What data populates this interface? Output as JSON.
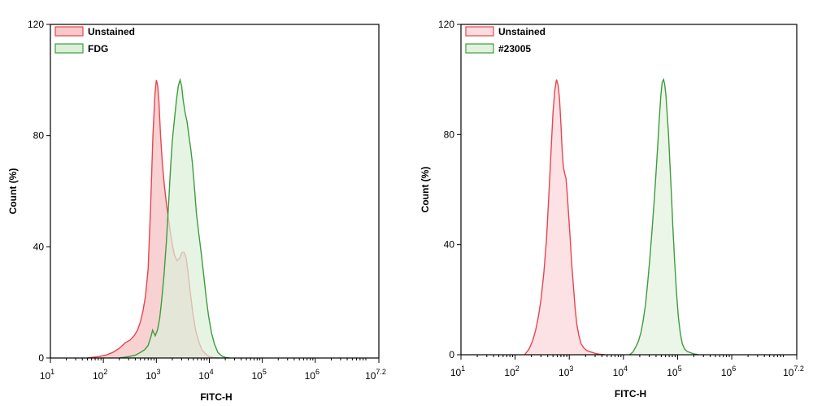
{
  "chart_data": [
    {
      "type": "area",
      "xscale": "log",
      "xlim": [
        10,
        15848931.92
      ],
      "ylim": [
        0,
        120
      ],
      "xlabel": "FITC-H",
      "ylabel": "Count (%)",
      "xticks": [
        {
          "value": 10,
          "base": "10",
          "exp": "1"
        },
        {
          "value": 100,
          "base": "10",
          "exp": "2"
        },
        {
          "value": 1000,
          "base": "10",
          "exp": "3"
        },
        {
          "value": 10000,
          "base": "10",
          "exp": "4"
        },
        {
          "value": 100000,
          "base": "10",
          "exp": "5"
        },
        {
          "value": 1000000,
          "base": "10",
          "exp": "6"
        },
        {
          "value": 15848931.92,
          "base": "10",
          "exp": "7.2"
        }
      ],
      "yticks": [
        {
          "value": 0,
          "label": "0"
        },
        {
          "value": 40,
          "label": "40"
        },
        {
          "value": 80,
          "label": "80"
        },
        {
          "value": 120,
          "label": "120"
        }
      ],
      "legend_position": "top-left",
      "series": [
        {
          "name": "Unstained",
          "stroke": "#e8454d",
          "fill": "#f7c9cb",
          "x": [
            50,
            80,
            110,
            150,
            200,
            260,
            320,
            380,
            440,
            500,
            560,
            620,
            700,
            780,
            860,
            940,
            1000,
            1060,
            1120,
            1200,
            1300,
            1420,
            1560,
            1700,
            1850,
            2000,
            2200,
            2450,
            2750,
            3050,
            3350,
            3650,
            4000,
            4400,
            4900,
            5500,
            6300,
            7200,
            8500,
            10000,
            12000,
            15000
          ],
          "y": [
            0,
            0.5,
            1,
            2,
            3.5,
            5.5,
            6.5,
            8,
            10,
            13,
            17,
            22,
            32,
            55,
            80,
            95,
            100,
            98,
            92,
            80,
            70,
            62,
            55,
            50,
            45,
            41,
            37,
            35,
            36,
            38,
            38,
            36,
            30,
            23,
            16,
            10,
            6,
            3,
            1.5,
            0.5,
            0.2,
            0
          ]
        },
        {
          "name": "FDG",
          "stroke": "#3d9c3d",
          "fill": "#dcefd8",
          "x": [
            200,
            300,
            400,
            500,
            600,
            700,
            800,
            850,
            900,
            950,
            1050,
            1150,
            1250,
            1400,
            1550,
            1700,
            1850,
            2000,
            2200,
            2400,
            2600,
            2800,
            3000,
            3200,
            3500,
            3800,
            4100,
            4400,
            4800,
            5200,
            5700,
            6300,
            7000,
            7800,
            8700,
            9700,
            11000,
            12500,
            14500,
            17000,
            20000,
            24000
          ],
          "y": [
            0,
            0.5,
            1,
            2,
            3,
            4.5,
            8,
            10,
            9,
            8,
            10,
            14,
            20,
            30,
            42,
            55,
            68,
            78,
            86,
            93,
            98,
            100,
            98,
            93,
            88,
            85,
            80,
            76,
            70,
            62,
            52,
            45,
            38,
            30,
            22,
            15,
            9,
            5,
            2,
            0.8,
            0.2,
            0
          ]
        }
      ]
    },
    {
      "type": "area",
      "xscale": "log",
      "xlim": [
        10,
        15848931.92
      ],
      "ylim": [
        0,
        120
      ],
      "xlabel": "FITC-H",
      "ylabel": "Count (%)",
      "xticks": [
        {
          "value": 10,
          "base": "10",
          "exp": "1"
        },
        {
          "value": 100,
          "base": "10",
          "exp": "2"
        },
        {
          "value": 1000,
          "base": "10",
          "exp": "3"
        },
        {
          "value": 10000,
          "base": "10",
          "exp": "4"
        },
        {
          "value": 100000,
          "base": "10",
          "exp": "5"
        },
        {
          "value": 1000000,
          "base": "10",
          "exp": "6"
        },
        {
          "value": 15848931.92,
          "base": "10",
          "exp": "7.2"
        }
      ],
      "yticks": [
        {
          "value": 0,
          "label": "0"
        },
        {
          "value": 40,
          "label": "40"
        },
        {
          "value": 80,
          "label": "80"
        },
        {
          "value": 120,
          "label": "120"
        }
      ],
      "legend_position": "top-left",
      "series": [
        {
          "name": "Unstained",
          "stroke": "#e8454d",
          "fill": "#fbdde0",
          "x": [
            150,
            180,
            210,
            240,
            270,
            300,
            340,
            380,
            420,
            460,
            500,
            540,
            580,
            620,
            660,
            700,
            740,
            780,
            820,
            870,
            920,
            980,
            1040,
            1110,
            1190,
            1280,
            1380,
            1500,
            1650,
            1850,
            2100,
            2500,
            3000,
            3600,
            4500
          ],
          "y": [
            0,
            2,
            5,
            9,
            14,
            20,
            30,
            42,
            58,
            74,
            88,
            96,
            100,
            98,
            93,
            84,
            74,
            68,
            66,
            64,
            58,
            50,
            42,
            33,
            25,
            17,
            11,
            7,
            4,
            2.5,
            1.5,
            1,
            0.5,
            0.2,
            0
          ]
        },
        {
          "name": "#23005",
          "stroke": "#3d9c3d",
          "fill": "#e3f2df",
          "x": [
            13000,
            15000,
            17000,
            19000,
            21000,
            23000,
            25500,
            28000,
            31000,
            34000,
            37000,
            40000,
            43000,
            46000,
            49000,
            52000,
            55000,
            58000,
            61000,
            64000,
            68000,
            72000,
            77000,
            82000,
            88000,
            95000,
            103000,
            112000,
            122000,
            135000,
            150000,
            170000,
            200000,
            240000
          ],
          "y": [
            0,
            1,
            3,
            5,
            8,
            12,
            18,
            26,
            36,
            46,
            56,
            66,
            76,
            86,
            94,
            99,
            100,
            98,
            94,
            88,
            80,
            70,
            58,
            46,
            34,
            23,
            14,
            8,
            4,
            2,
            1.2,
            0.8,
            0.3,
            0
          ]
        }
      ]
    }
  ]
}
